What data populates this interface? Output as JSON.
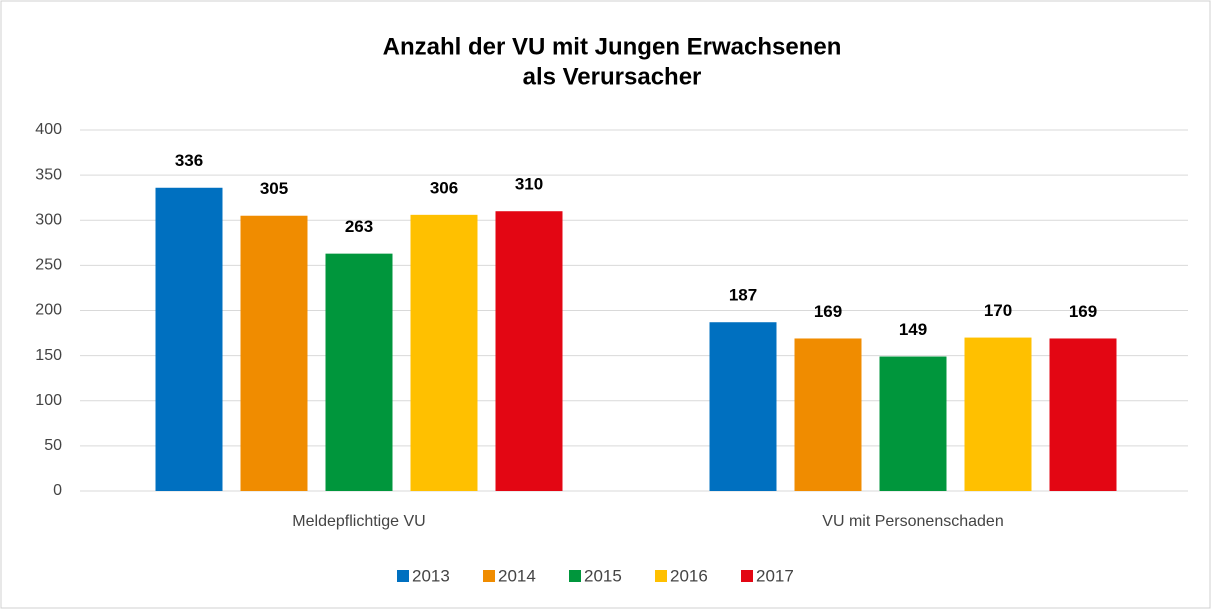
{
  "chart_data": {
    "type": "bar",
    "title": [
      "Anzahl der VU mit Jungen Erwachsenen",
      "als Verursacher"
    ],
    "categories": [
      "Meldepflichtige VU",
      "VU mit Personenschaden"
    ],
    "series": [
      {
        "name": "2013",
        "color": "#0070c0",
        "values": [
          336,
          187
        ]
      },
      {
        "name": "2014",
        "color": "#f08c00",
        "values": [
          305,
          169
        ]
      },
      {
        "name": "2015",
        "color": "#00963c",
        "values": [
          263,
          149
        ]
      },
      {
        "name": "2016",
        "color": "#ffc000",
        "values": [
          306,
          170
        ]
      },
      {
        "name": "2017",
        "color": "#e30613",
        "values": [
          310,
          169
        ]
      }
    ],
    "ylim": [
      0,
      400
    ],
    "yticks": [
      0,
      50,
      100,
      150,
      200,
      250,
      300,
      350,
      400
    ],
    "grid": true,
    "legend": "bottom"
  }
}
